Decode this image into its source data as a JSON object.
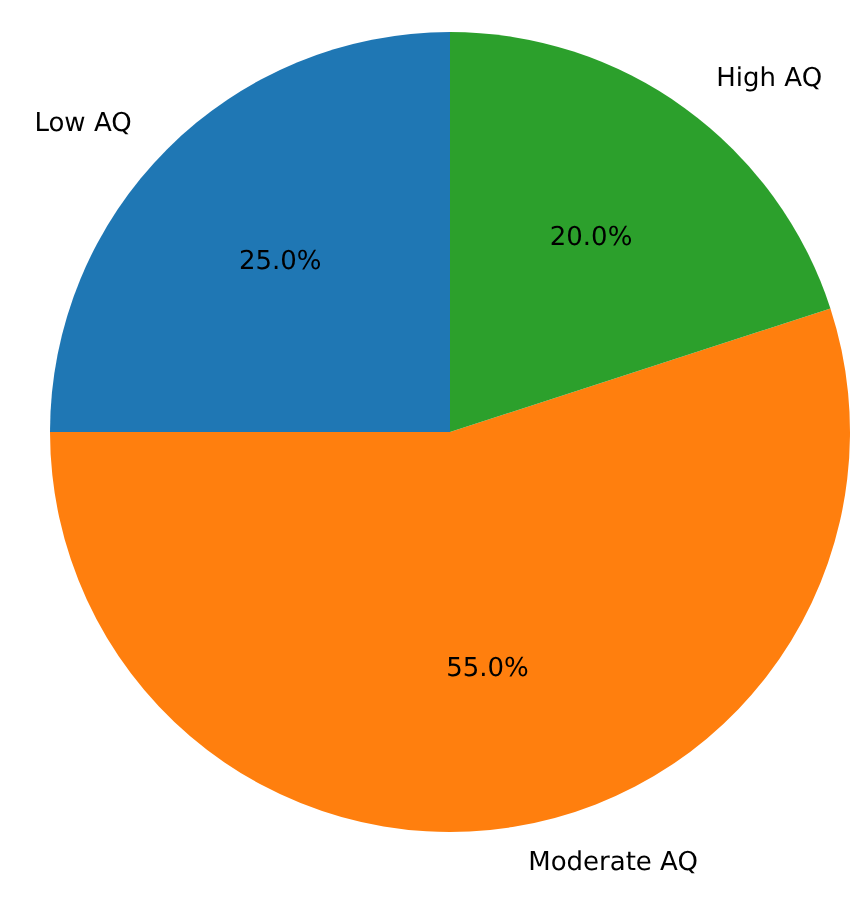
{
  "chart_data": {
    "type": "pie",
    "categories": [
      "Low AQ",
      "Moderate AQ",
      "High AQ"
    ],
    "values": [
      25,
      55,
      20
    ],
    "value_labels": [
      "25.0%",
      "55.0%",
      "20.0%"
    ],
    "colors": [
      "#1f77b4",
      "#ff7f0e",
      "#2ca02c"
    ]
  }
}
